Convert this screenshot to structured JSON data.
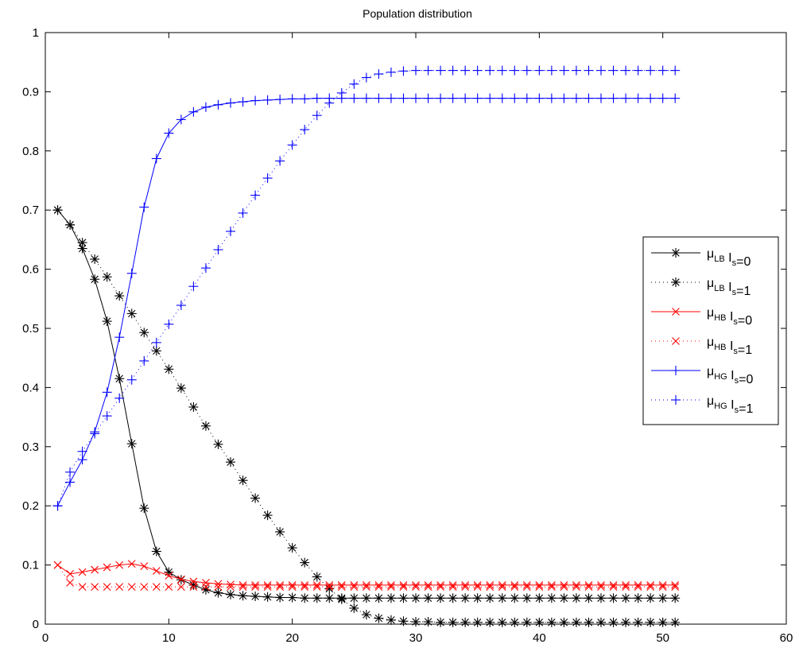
{
  "chart_data": {
    "type": "line",
    "title": "Population distribution",
    "xlabel": "",
    "ylabel": "",
    "xlim": [
      0,
      60
    ],
    "ylim": [
      0,
      1
    ],
    "x_ticks": [
      "0",
      "10",
      "20",
      "30",
      "40",
      "50",
      "60"
    ],
    "y_ticks": [
      "0",
      "0.1",
      "0.2",
      "0.3",
      "0.4",
      "0.5",
      "0.6",
      "0.7",
      "0.8",
      "0.9",
      "1"
    ],
    "grid": false,
    "legend_position": "right",
    "x": [
      1,
      2,
      3,
      4,
      5,
      6,
      7,
      8,
      9,
      10,
      11,
      12,
      13,
      14,
      15,
      16,
      17,
      18,
      19,
      20,
      21,
      22,
      23,
      24,
      25,
      26,
      27,
      28,
      29,
      30,
      31,
      32,
      33,
      34,
      35,
      36,
      37,
      38,
      39,
      40,
      41,
      42,
      43,
      44,
      45,
      46,
      47,
      48,
      49,
      50,
      51
    ],
    "series": [
      {
        "name": "μLB Is=0",
        "legend": {
          "mu": "μ",
          "mu_sub": "LB",
          "i": "I",
          "i_sub": "s",
          "val": "=0"
        },
        "color": "#000000",
        "line_style": "solid",
        "marker": "asterisk",
        "values": [
          0.7,
          0.675,
          0.635,
          0.583,
          0.512,
          0.415,
          0.305,
          0.196,
          0.123,
          0.088,
          0.075,
          0.066,
          0.058,
          0.053,
          0.05,
          0.048,
          0.047,
          0.046,
          0.045,
          0.045,
          0.044,
          0.044,
          0.044,
          0.044,
          0.044,
          0.044,
          0.044,
          0.044,
          0.044,
          0.044,
          0.044,
          0.044,
          0.044,
          0.044,
          0.044,
          0.044,
          0.044,
          0.044,
          0.044,
          0.044,
          0.044,
          0.044,
          0.044,
          0.044,
          0.044,
          0.044,
          0.044,
          0.044,
          0.044,
          0.044,
          0.044
        ]
      },
      {
        "name": "μLB Is=1",
        "legend": {
          "mu": "μ",
          "mu_sub": "LB",
          "i": "I",
          "i_sub": "s",
          "val": "=1"
        },
        "color": "#000000",
        "line_style": "dotted",
        "marker": "asterisk",
        "values": [
          0.7,
          0.675,
          0.645,
          0.617,
          0.587,
          0.555,
          0.525,
          0.493,
          0.462,
          0.431,
          0.399,
          0.367,
          0.335,
          0.304,
          0.274,
          0.243,
          0.213,
          0.184,
          0.156,
          0.129,
          0.104,
          0.08,
          0.06,
          0.042,
          0.027,
          0.016,
          0.01,
          0.007,
          0.005,
          0.004,
          0.004,
          0.003,
          0.003,
          0.003,
          0.003,
          0.003,
          0.003,
          0.003,
          0.003,
          0.003,
          0.003,
          0.003,
          0.003,
          0.003,
          0.003,
          0.003,
          0.003,
          0.003,
          0.003,
          0.003,
          0.003
        ]
      },
      {
        "name": "μHB Is=0",
        "legend": {
          "mu": "μ",
          "mu_sub": "HB",
          "i": "I",
          "i_sub": "s",
          "val": "=0"
        },
        "color": "#ff0000",
        "line_style": "solid",
        "marker": "x",
        "values": [
          0.1,
          0.085,
          0.088,
          0.092,
          0.096,
          0.1,
          0.102,
          0.098,
          0.09,
          0.082,
          0.076,
          0.072,
          0.07,
          0.068,
          0.067,
          0.066,
          0.066,
          0.066,
          0.066,
          0.066,
          0.066,
          0.066,
          0.066,
          0.066,
          0.066,
          0.066,
          0.066,
          0.066,
          0.066,
          0.066,
          0.066,
          0.066,
          0.066,
          0.066,
          0.066,
          0.066,
          0.066,
          0.066,
          0.066,
          0.066,
          0.066,
          0.066,
          0.066,
          0.066,
          0.066,
          0.066,
          0.066,
          0.066,
          0.066,
          0.066,
          0.066
        ]
      },
      {
        "name": "μHB Is=1",
        "legend": {
          "mu": "μ",
          "mu_sub": "HB",
          "i": "I",
          "i_sub": "s",
          "val": "=1"
        },
        "color": "#ff0000",
        "line_style": "dotted",
        "marker": "x",
        "values": [
          0.1,
          0.07,
          0.063,
          0.063,
          0.063,
          0.063,
          0.063,
          0.063,
          0.063,
          0.063,
          0.063,
          0.063,
          0.063,
          0.063,
          0.063,
          0.063,
          0.063,
          0.063,
          0.063,
          0.063,
          0.063,
          0.063,
          0.063,
          0.063,
          0.063,
          0.063,
          0.063,
          0.063,
          0.063,
          0.063,
          0.063,
          0.063,
          0.063,
          0.063,
          0.063,
          0.063,
          0.063,
          0.063,
          0.063,
          0.063,
          0.063,
          0.063,
          0.063,
          0.063,
          0.063,
          0.063,
          0.063,
          0.063,
          0.063,
          0.063,
          0.063
        ]
      },
      {
        "name": "μHG Is=0",
        "legend": {
          "mu": "μ",
          "mu_sub": "HG",
          "i": "I",
          "i_sub": "s",
          "val": "=0"
        },
        "color": "#0000ff",
        "line_style": "solid",
        "marker": "plus",
        "values": [
          0.2,
          0.24,
          0.278,
          0.325,
          0.392,
          0.485,
          0.593,
          0.705,
          0.787,
          0.83,
          0.853,
          0.866,
          0.874,
          0.878,
          0.881,
          0.883,
          0.885,
          0.886,
          0.887,
          0.888,
          0.888,
          0.889,
          0.889,
          0.889,
          0.889,
          0.889,
          0.889,
          0.889,
          0.889,
          0.889,
          0.889,
          0.889,
          0.889,
          0.889,
          0.889,
          0.889,
          0.889,
          0.889,
          0.889,
          0.889,
          0.889,
          0.889,
          0.889,
          0.889,
          0.889,
          0.889,
          0.889,
          0.889,
          0.889,
          0.889,
          0.889
        ]
      },
      {
        "name": "μHG Is=1",
        "legend": {
          "mu": "μ",
          "mu_sub": "HG",
          "i": "I",
          "i_sub": "s",
          "val": "=1"
        },
        "color": "#0000ff",
        "line_style": "dotted",
        "marker": "plus",
        "values": [
          0.2,
          0.257,
          0.292,
          0.322,
          0.352,
          0.382,
          0.413,
          0.445,
          0.476,
          0.507,
          0.539,
          0.571,
          0.602,
          0.633,
          0.664,
          0.695,
          0.725,
          0.754,
          0.783,
          0.81,
          0.836,
          0.86,
          0.881,
          0.898,
          0.913,
          0.924,
          0.93,
          0.933,
          0.935,
          0.936,
          0.936,
          0.936,
          0.936,
          0.936,
          0.936,
          0.936,
          0.936,
          0.936,
          0.936,
          0.936,
          0.936,
          0.936,
          0.936,
          0.936,
          0.936,
          0.936,
          0.936,
          0.936,
          0.936,
          0.936,
          0.936
        ]
      }
    ]
  }
}
